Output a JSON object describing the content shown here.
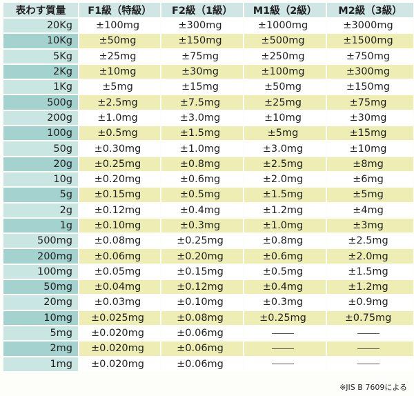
{
  "table": {
    "headers": [
      "表わす質量",
      "F1級（特級）",
      "F2級（1級）",
      "M1級（2級）",
      "M2級（3級）"
    ],
    "rows": [
      [
        "20Kg",
        "±100mg",
        "±300mg",
        "±1000mg",
        "±3000mg"
      ],
      [
        "10Kg",
        "±50mg",
        "±150mg",
        "±500mg",
        "±1500mg"
      ],
      [
        "5Kg",
        "±25mg",
        "±75mg",
        "±250mg",
        "±750mg"
      ],
      [
        "2Kg",
        "±10mg",
        "±30mg",
        "±100mg",
        "±300mg"
      ],
      [
        "1Kg",
        "±5mg",
        "±15mg",
        "±50mg",
        "±150mg"
      ],
      [
        "500g",
        "±2.5mg",
        "±7.5mg",
        "±25mg",
        "±75mg"
      ],
      [
        "200g",
        "±1.0mg",
        "±3.0mg",
        "±10mg",
        "±30mg"
      ],
      [
        "100g",
        "±0.5mg",
        "±1.5mg",
        "±5mg",
        "±15mg"
      ],
      [
        "50g",
        "±0.30mg",
        "±1.0mg",
        "±3.0mg",
        "±10mg"
      ],
      [
        "20g",
        "±0.25mg",
        "±0.8mg",
        "±2.5mg",
        "±8mg"
      ],
      [
        "10g",
        "±0.20mg",
        "±0.6mg",
        "±2.0mg",
        "±6mg"
      ],
      [
        "5g",
        "±0.15mg",
        "±0.5mg",
        "±1.5mg",
        "±5mg"
      ],
      [
        "2g",
        "±0.12mg",
        "±0.4mg",
        "±1.2mg",
        "±4mg"
      ],
      [
        "1g",
        "±0.10mg",
        "±0.3mg",
        "±1.0mg",
        "±3mg"
      ],
      [
        "500mg",
        "±0.08mg",
        "±0.25mg",
        "±0.8mg",
        "±2.5mg"
      ],
      [
        "200mg",
        "±0.06mg",
        "±0.20mg",
        "±0.6mg",
        "±2.0mg"
      ],
      [
        "100mg",
        "±0.05mg",
        "±0.15mg",
        "±0.5mg",
        "±1.5mg"
      ],
      [
        "50mg",
        "±0.04mg",
        "±0.12mg",
        "±0.4mg",
        "±1.2mg"
      ],
      [
        "20mg",
        "±0.03mg",
        "±0.10mg",
        "±0.3mg",
        "±0.9mg"
      ],
      [
        "10mg",
        "±0.025mg",
        "±0.08mg",
        "±0.25mg",
        "±0.75mg"
      ],
      [
        "5mg",
        "±0.020mg",
        "±0.06mg",
        "",
        ""
      ],
      [
        "2mg",
        "±0.020mg",
        "±0.06mg",
        "",
        ""
      ],
      [
        "1mg",
        "±0.020mg",
        "±0.06mg",
        "",
        ""
      ]
    ]
  },
  "note": "※JIS B 7609による",
  "colors": {
    "header_bg": "#cfe6e4",
    "mass_col_bg": "#a9d5d2",
    "alt_row_bg": "#eeeeb4",
    "row_bg": "#ffffff"
  }
}
